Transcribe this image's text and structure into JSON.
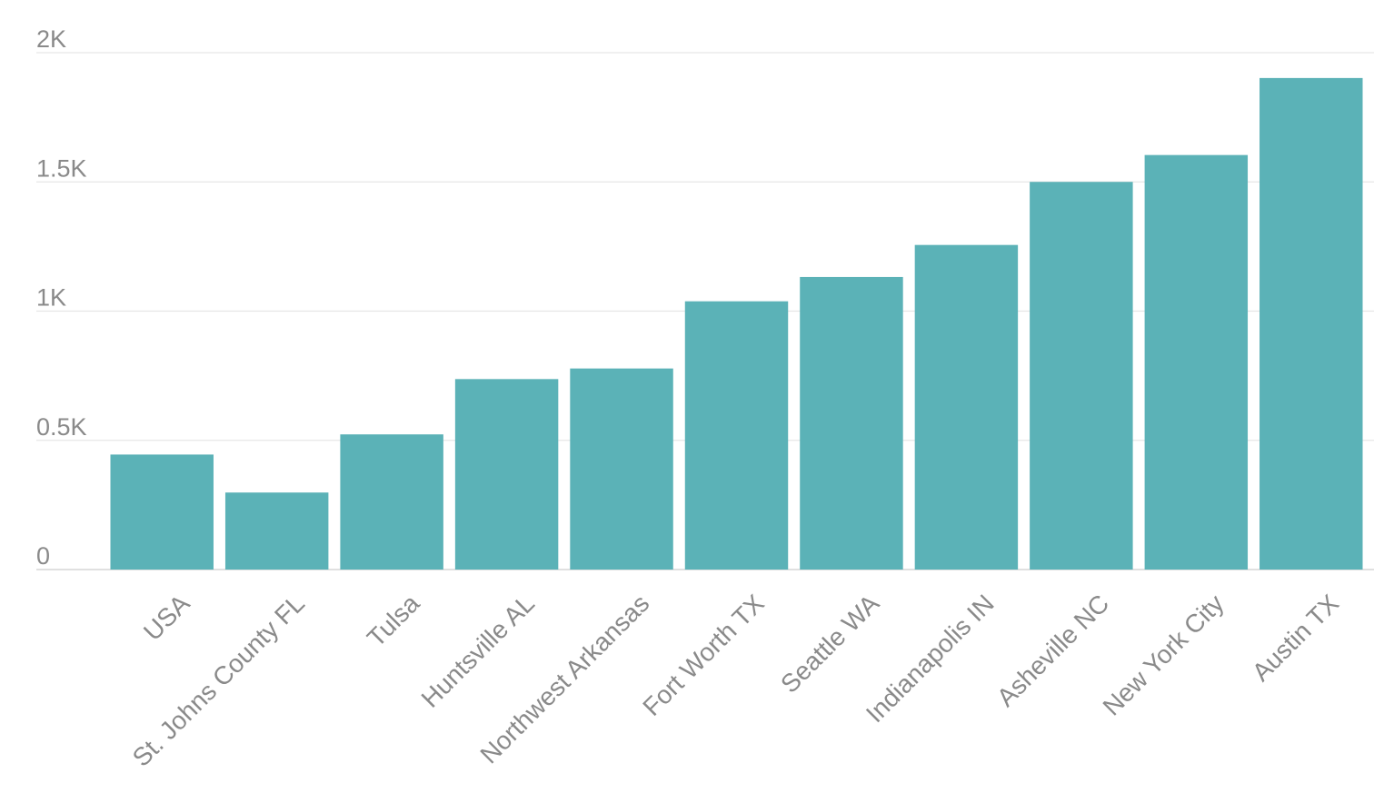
{
  "chart_data": {
    "type": "bar",
    "title": "",
    "xlabel": "",
    "ylabel": "",
    "categories": [
      "USA",
      "St. Johns County FL",
      "Tulsa",
      "Huntsville AL",
      "Northwest Arkansas",
      "Fort Worth TX",
      "Seattle WA",
      "Indianapolis IN",
      "Asheville NC",
      "New York City",
      "Austin TX"
    ],
    "values": [
      445,
      298,
      523,
      737,
      778,
      1038,
      1132,
      1256,
      1500,
      1604,
      1902
    ],
    "ylim": [
      0,
      2000
    ],
    "yticks": [
      0,
      500,
      1000,
      1500,
      2000
    ],
    "ytick_labels": [
      "0",
      "0.5K",
      "1K",
      "1.5K",
      "2K"
    ],
    "grid": true,
    "legend": "none",
    "colors": {
      "bar": "#5bb2b7",
      "grid": "#e6e6e6",
      "tick_text": "#8a8a8a"
    }
  }
}
